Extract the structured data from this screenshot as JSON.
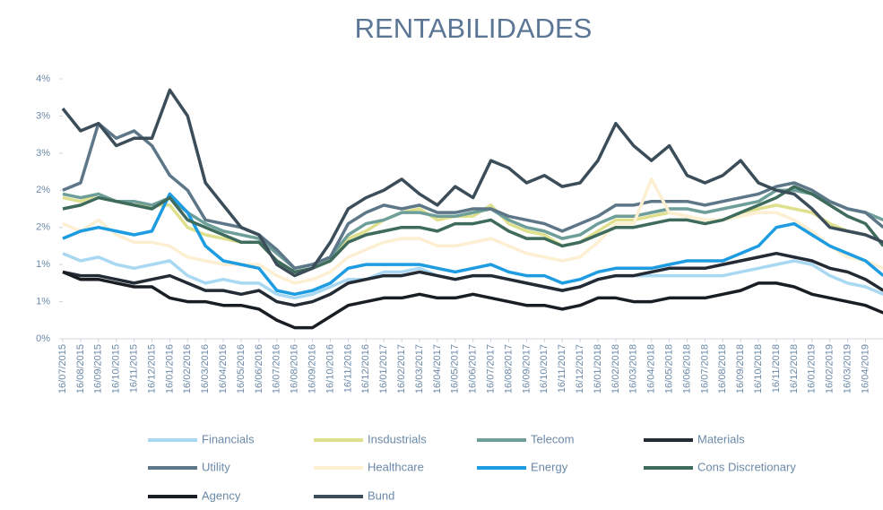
{
  "chart_data": {
    "type": "line",
    "title": "RENTABILIDADES",
    "categories": [
      "16/07/2015",
      "16/08/2015",
      "16/09/2015",
      "16/10/2015",
      "16/11/2015",
      "16/12/2015",
      "16/01/2016",
      "16/02/2016",
      "16/03/2016",
      "16/04/2016",
      "16/05/2016",
      "16/06/2016",
      "16/07/2016",
      "16/08/2016",
      "16/09/2016",
      "16/10/2016",
      "16/11/2016",
      "16/12/2016",
      "16/01/2017",
      "16/02/2017",
      "16/03/2017",
      "16/04/2017",
      "16/05/2017",
      "16/06/2017",
      "16/07/2017",
      "16/08/2017",
      "16/09/2017",
      "16/10/2017",
      "16/11/2017",
      "16/12/2017",
      "16/01/2018",
      "16/02/2018",
      "16/03/2018",
      "16/04/2018",
      "16/05/2018",
      "16/06/2018",
      "16/07/2018",
      "16/08/2018",
      "16/09/2018",
      "16/10/2018",
      "16/11/2018",
      "16/12/2018",
      "16/01/2019",
      "16/02/2019",
      "16/03/2019",
      "16/04/2019",
      null
    ],
    "ylim": [
      0,
      3.5
    ],
    "yticks": [
      {
        "value": 0,
        "label": "0%"
      },
      {
        "value": 0.5,
        "label": "1%"
      },
      {
        "value": 1,
        "label": "1%"
      },
      {
        "value": 1.5,
        "label": "2%"
      },
      {
        "value": 2,
        "label": "2%"
      },
      {
        "value": 2.5,
        "label": "3%"
      },
      {
        "value": 3,
        "label": "3%"
      },
      {
        "value": 3.5,
        "label": "4%"
      }
    ],
    "legend": "bottom",
    "series": [
      {
        "name": "Financials",
        "color": "#a9d9f2",
        "values": [
          1.15,
          1.05,
          1.1,
          1.0,
          0.95,
          1.0,
          1.05,
          0.85,
          0.75,
          0.8,
          0.75,
          0.75,
          0.6,
          0.55,
          0.6,
          0.7,
          0.8,
          0.8,
          0.9,
          0.9,
          0.95,
          0.85,
          0.8,
          0.85,
          0.85,
          0.8,
          0.75,
          0.7,
          0.65,
          0.7,
          0.8,
          0.85,
          0.85,
          0.85,
          0.85,
          0.85,
          0.85,
          0.85,
          0.9,
          0.95,
          1.0,
          1.05,
          1.0,
          0.85,
          0.75,
          0.7,
          0.6
        ]
      },
      {
        "name": "Insdustrials",
        "color": "#dfe08e",
        "values": [
          1.9,
          1.85,
          1.95,
          1.85,
          1.8,
          1.8,
          1.8,
          1.5,
          1.4,
          1.35,
          1.3,
          1.3,
          1.05,
          0.9,
          0.95,
          1.05,
          1.35,
          1.45,
          1.6,
          1.7,
          1.75,
          1.6,
          1.65,
          1.65,
          1.8,
          1.55,
          1.45,
          1.4,
          1.25,
          1.3,
          1.45,
          1.6,
          1.6,
          1.65,
          1.7,
          1.65,
          1.6,
          1.6,
          1.7,
          1.75,
          1.8,
          1.75,
          1.7,
          1.55,
          1.45,
          1.4,
          1.3
        ]
      },
      {
        "name": "Telecom",
        "color": "#6d9e99",
        "values": [
          1.95,
          1.9,
          1.95,
          1.85,
          1.85,
          1.8,
          1.9,
          1.7,
          1.55,
          1.45,
          1.4,
          1.35,
          1.15,
          0.95,
          1.0,
          1.1,
          1.4,
          1.55,
          1.6,
          1.7,
          1.7,
          1.65,
          1.65,
          1.7,
          1.75,
          1.6,
          1.5,
          1.45,
          1.35,
          1.4,
          1.55,
          1.65,
          1.65,
          1.7,
          1.75,
          1.75,
          1.7,
          1.75,
          1.8,
          1.85,
          2.0,
          2.0,
          1.95,
          1.85,
          1.75,
          1.7,
          1.6
        ]
      },
      {
        "name": "Materials",
        "color": "#232b35",
        "values": [
          0.9,
          0.85,
          0.85,
          0.8,
          0.75,
          0.8,
          0.85,
          0.75,
          0.65,
          0.65,
          0.6,
          0.65,
          0.5,
          0.45,
          0.5,
          0.6,
          0.75,
          0.8,
          0.85,
          0.85,
          0.9,
          0.85,
          0.8,
          0.85,
          0.85,
          0.8,
          0.75,
          0.7,
          0.65,
          0.7,
          0.8,
          0.85,
          0.85,
          0.9,
          0.95,
          0.95,
          0.95,
          1.0,
          1.05,
          1.1,
          1.15,
          1.1,
          1.05,
          0.95,
          0.9,
          0.8,
          0.65
        ]
      },
      {
        "name": "Utility",
        "color": "#5d7789",
        "values": [
          2.0,
          2.1,
          2.9,
          2.7,
          2.8,
          2.6,
          2.2,
          2.0,
          1.6,
          1.55,
          1.5,
          1.4,
          1.2,
          0.95,
          1.0,
          1.1,
          1.55,
          1.7,
          1.8,
          1.75,
          1.8,
          1.7,
          1.7,
          1.75,
          1.75,
          1.65,
          1.6,
          1.55,
          1.45,
          1.55,
          1.65,
          1.8,
          1.8,
          1.85,
          1.85,
          1.85,
          1.8,
          1.85,
          1.9,
          1.95,
          2.05,
          2.1,
          2.0,
          1.85,
          1.75,
          1.7,
          1.5
        ]
      },
      {
        "name": "Healthcare",
        "color": "#fcefd2",
        "values": [
          1.55,
          1.45,
          1.6,
          1.4,
          1.3,
          1.3,
          1.25,
          1.1,
          1.05,
          1.0,
          1.0,
          1.0,
          0.85,
          0.75,
          0.8,
          0.9,
          1.1,
          1.2,
          1.3,
          1.35,
          1.35,
          1.25,
          1.25,
          1.3,
          1.35,
          1.25,
          1.15,
          1.1,
          1.05,
          1.1,
          1.3,
          1.55,
          1.55,
          2.15,
          1.7,
          1.65,
          1.6,
          1.6,
          1.65,
          1.7,
          1.7,
          1.6,
          1.45,
          1.25,
          1.1,
          1.05,
          0.95
        ]
      },
      {
        "name": "Energy",
        "color": "#1e9ce2",
        "values": [
          1.35,
          1.45,
          1.5,
          1.45,
          1.4,
          1.45,
          1.95,
          1.7,
          1.25,
          1.05,
          1.0,
          0.95,
          0.65,
          0.6,
          0.65,
          0.75,
          0.95,
          1.0,
          1.0,
          1.0,
          1.0,
          0.95,
          0.9,
          0.95,
          1.0,
          0.9,
          0.85,
          0.85,
          0.75,
          0.8,
          0.9,
          0.95,
          0.95,
          0.95,
          1.0,
          1.05,
          1.05,
          1.05,
          1.15,
          1.25,
          1.5,
          1.55,
          1.4,
          1.25,
          1.15,
          1.05,
          0.85
        ]
      },
      {
        "name": "Cons Discretionary",
        "color": "#3e6b5b",
        "values": [
          1.75,
          1.8,
          1.9,
          1.85,
          1.8,
          1.75,
          1.9,
          1.6,
          1.5,
          1.4,
          1.3,
          1.3,
          1.05,
          0.9,
          0.95,
          1.05,
          1.3,
          1.4,
          1.45,
          1.5,
          1.5,
          1.45,
          1.55,
          1.55,
          1.6,
          1.45,
          1.35,
          1.35,
          1.25,
          1.3,
          1.4,
          1.5,
          1.5,
          1.55,
          1.6,
          1.6,
          1.55,
          1.6,
          1.7,
          1.8,
          1.9,
          2.05,
          1.95,
          1.8,
          1.65,
          1.55,
          1.25
        ]
      },
      {
        "name": "Agency",
        "color": "#191e25",
        "values": [
          0.9,
          0.8,
          0.8,
          0.75,
          0.7,
          0.7,
          0.55,
          0.5,
          0.5,
          0.45,
          0.45,
          0.4,
          0.25,
          0.15,
          0.15,
          0.3,
          0.45,
          0.5,
          0.55,
          0.55,
          0.6,
          0.55,
          0.55,
          0.6,
          0.55,
          0.5,
          0.45,
          0.45,
          0.4,
          0.45,
          0.55,
          0.55,
          0.5,
          0.5,
          0.55,
          0.55,
          0.55,
          0.6,
          0.65,
          0.75,
          0.75,
          0.7,
          0.6,
          0.55,
          0.5,
          0.45,
          0.35
        ]
      },
      {
        "name": "Bund",
        "color": "#3c4d5a",
        "values": [
          3.1,
          2.8,
          2.9,
          2.6,
          2.7,
          2.7,
          3.35,
          3.0,
          2.1,
          1.8,
          1.5,
          1.4,
          1.0,
          0.85,
          0.95,
          1.3,
          1.75,
          1.9,
          2.0,
          2.15,
          1.95,
          1.8,
          2.05,
          1.9,
          2.4,
          2.3,
          2.1,
          2.2,
          2.05,
          2.1,
          2.4,
          2.9,
          2.6,
          2.4,
          2.6,
          2.2,
          2.1,
          2.2,
          2.4,
          2.1,
          2.0,
          1.95,
          1.75,
          1.5,
          1.45,
          1.4,
          1.3
        ]
      }
    ]
  }
}
